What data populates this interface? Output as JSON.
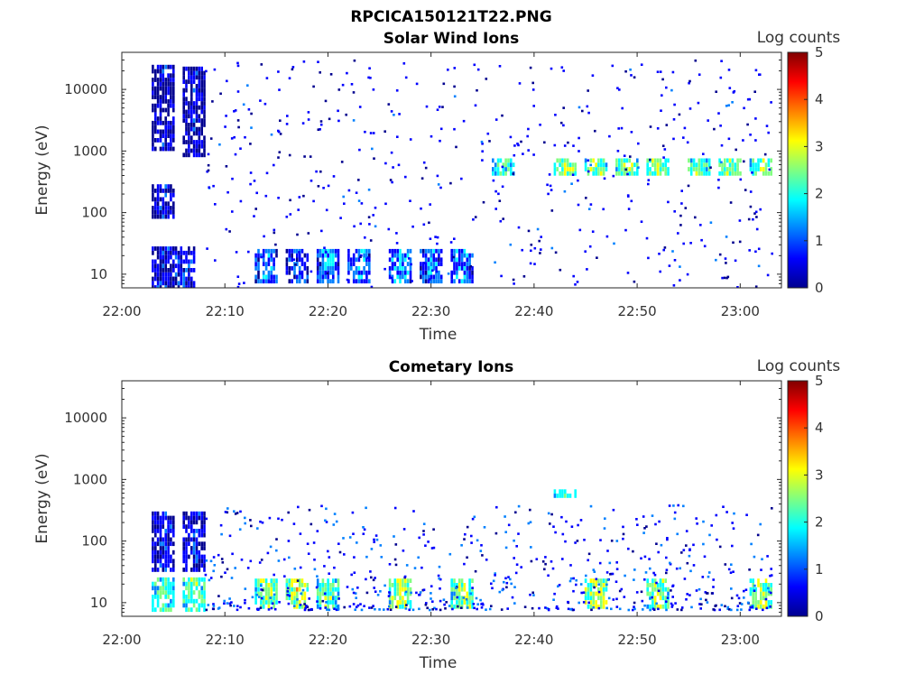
{
  "figure": {
    "title": "RPCICA150121T22.PNG",
    "colorbar_label": "Log counts",
    "colorbar_ticks": [
      "0",
      "1",
      "2",
      "3",
      "4",
      "5"
    ],
    "colormap": [
      "#00008f",
      "#0000ff",
      "#0080ff",
      "#00ffff",
      "#80ff80",
      "#ffff00",
      "#ff8000",
      "#ff0000",
      "#800000"
    ]
  },
  "chart_data": [
    {
      "type": "heatmap",
      "title": "Solar Wind Ions",
      "xlabel": "Time",
      "ylabel": "Energy (eV)",
      "x_ticks": [
        "22:00",
        "22:10",
        "22:20",
        "22:30",
        "22:40",
        "22:50",
        "23:00"
      ],
      "x_range": [
        "22:00",
        "23:04"
      ],
      "y_ticks": [
        "10",
        "100",
        "1000",
        "10000"
      ],
      "y_range": [
        6,
        40000
      ],
      "y_scale": "log",
      "z_label": "Log counts",
      "z_range": [
        0,
        5
      ],
      "groups": [
        {
          "x": "22:04",
          "y": [
            0.75,
            1.45
          ],
          "z": 0.6
        },
        {
          "x": "22:04",
          "y": [
            1.9,
            2.4
          ],
          "z": 0.6
        },
        {
          "x": "22:04",
          "y": [
            3.0,
            4.35
          ],
          "z": 0.4
        },
        {
          "x": "22:06",
          "y": [
            0.75,
            1.45
          ],
          "z": 0.8
        },
        {
          "x": "22:07",
          "y": [
            2.9,
            4.35
          ],
          "z": 0.4
        },
        {
          "x": "22:14",
          "y": [
            0.85,
            1.4
          ],
          "z": 1.2
        },
        {
          "x": "22:17",
          "y": [
            0.85,
            1.4
          ],
          "z": 0.9
        },
        {
          "x": "22:20",
          "y": [
            0.85,
            1.4
          ],
          "z": 1.4
        },
        {
          "x": "22:23",
          "y": [
            0.85,
            1.4
          ],
          "z": 1.3
        },
        {
          "x": "22:27",
          "y": [
            0.85,
            1.4
          ],
          "z": 1.4
        },
        {
          "x": "22:30",
          "y": [
            0.85,
            1.4
          ],
          "z": 1.2
        },
        {
          "x": "22:33",
          "y": [
            0.85,
            1.4
          ],
          "z": 1.3
        },
        {
          "x": "22:37",
          "y": [
            2.6,
            2.85
          ],
          "z": 2.2
        },
        {
          "x": "22:43",
          "y": [
            2.6,
            2.85
          ],
          "z": 2.6
        },
        {
          "x": "22:46",
          "y": [
            2.6,
            2.85
          ],
          "z": 2.5
        },
        {
          "x": "22:49",
          "y": [
            2.6,
            2.85
          ],
          "z": 2.6
        },
        {
          "x": "22:52",
          "y": [
            2.6,
            2.85
          ],
          "z": 2.7
        },
        {
          "x": "22:56",
          "y": [
            2.6,
            2.85
          ],
          "z": 2.4
        },
        {
          "x": "22:59",
          "y": [
            2.6,
            2.85
          ],
          "z": 2.4
        },
        {
          "x": "23:02",
          "y": [
            2.6,
            2.85
          ],
          "z": 2.5
        }
      ]
    },
    {
      "type": "heatmap",
      "title": "Cometary Ions",
      "xlabel": "Time",
      "ylabel": "Energy (eV)",
      "x_ticks": [
        "22:00",
        "22:10",
        "22:20",
        "22:30",
        "22:40",
        "22:50",
        "23:00"
      ],
      "x_range": [
        "22:00",
        "23:04"
      ],
      "y_ticks": [
        "10",
        "100",
        "1000",
        "10000"
      ],
      "y_range": [
        6,
        40000
      ],
      "y_scale": "log",
      "z_label": "Log counts",
      "z_range": [
        0,
        5
      ],
      "groups": [
        {
          "x": "22:04",
          "y": [
            0.85,
            1.35
          ],
          "z": 2.3
        },
        {
          "x": "22:04",
          "y": [
            1.5,
            2.45
          ],
          "z": 0.6
        },
        {
          "x": "22:07",
          "y": [
            0.85,
            1.35
          ],
          "z": 2.4
        },
        {
          "x": "22:07",
          "y": [
            1.5,
            2.45
          ],
          "z": 0.6
        },
        {
          "x": "22:14",
          "y": [
            0.9,
            1.35
          ],
          "z": 2.6
        },
        {
          "x": "22:17",
          "y": [
            0.9,
            1.35
          ],
          "z": 2.9
        },
        {
          "x": "22:20",
          "y": [
            0.9,
            1.35
          ],
          "z": 2.4
        },
        {
          "x": "22:27",
          "y": [
            0.9,
            1.35
          ],
          "z": 2.7
        },
        {
          "x": "22:33",
          "y": [
            0.9,
            1.35
          ],
          "z": 2.6
        },
        {
          "x": "22:43",
          "y": [
            2.7,
            2.8
          ],
          "z": 2.6
        },
        {
          "x": "22:46",
          "y": [
            0.9,
            1.35
          ],
          "z": 3.0
        },
        {
          "x": "22:52",
          "y": [
            0.9,
            1.35
          ],
          "z": 2.6
        },
        {
          "x": "23:02",
          "y": [
            0.9,
            1.35
          ],
          "z": 2.8
        }
      ]
    }
  ]
}
